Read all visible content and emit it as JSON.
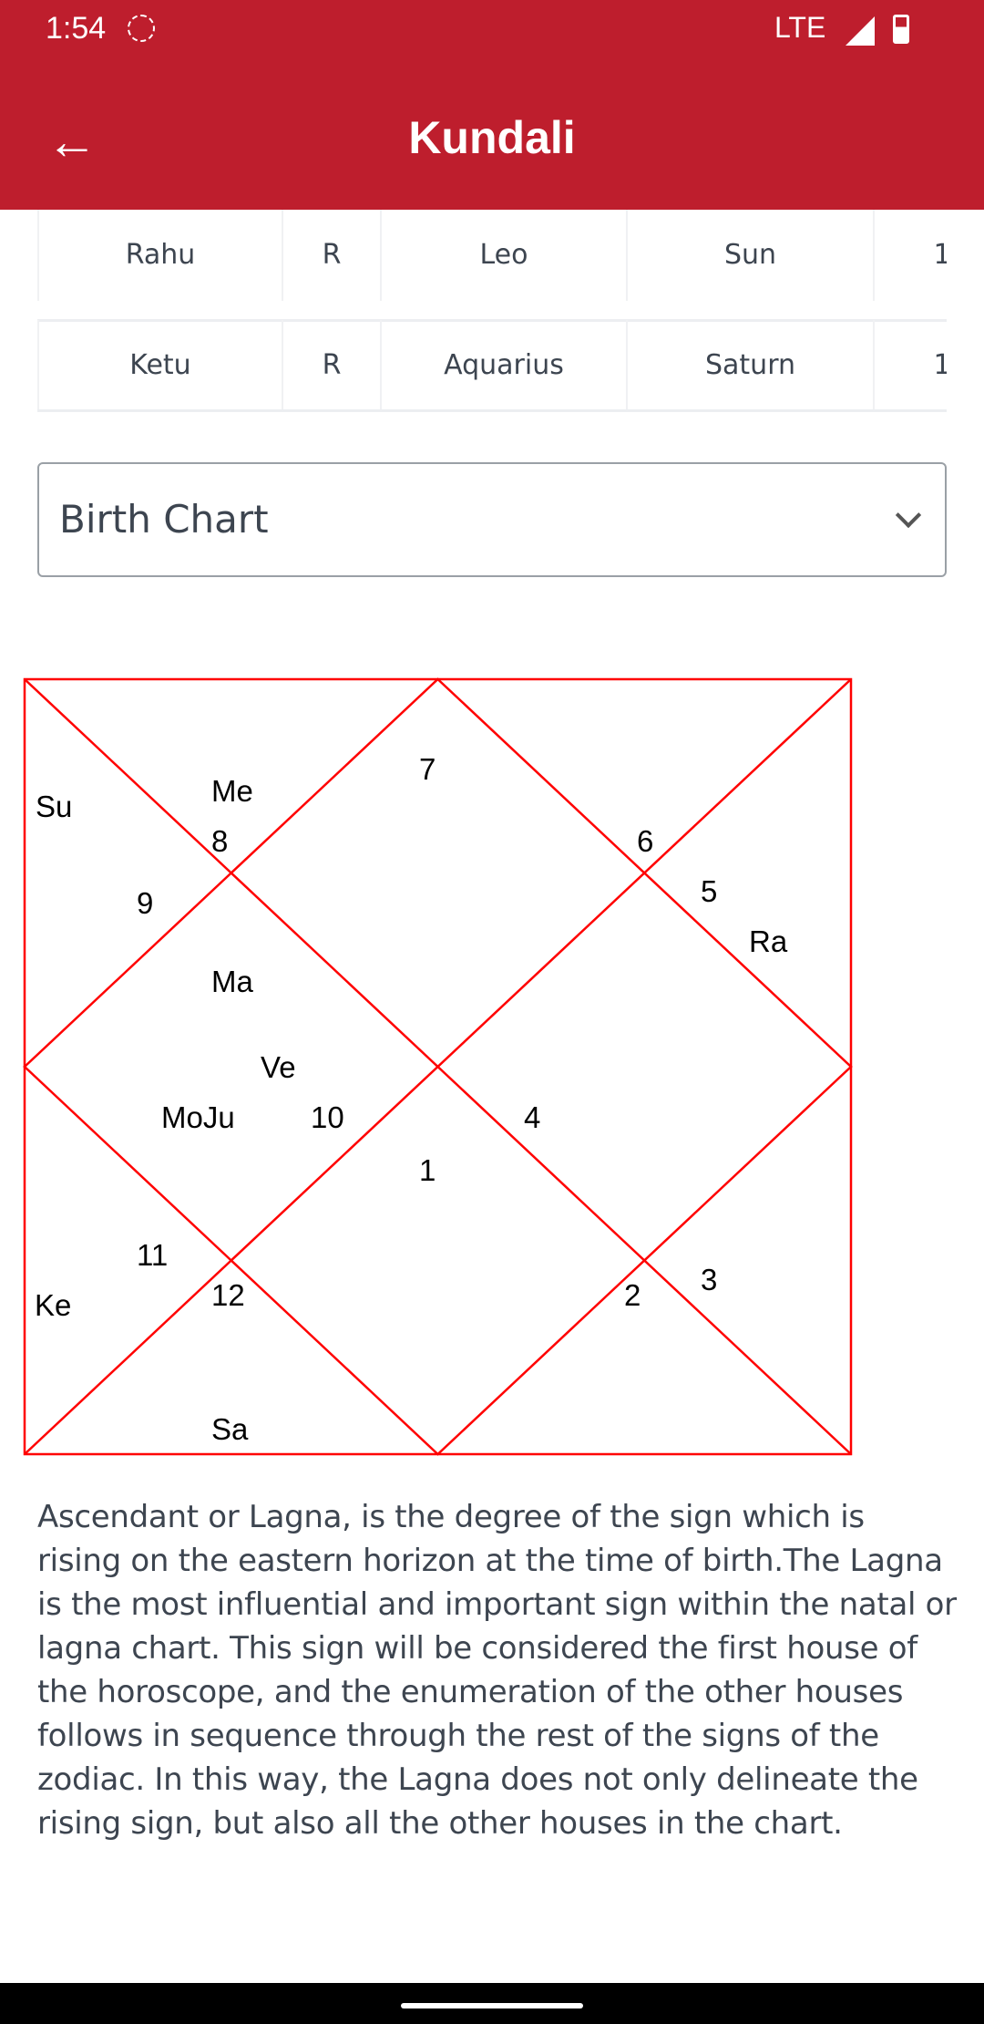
{
  "status_bar": {
    "time": "1:54",
    "network": "LTE",
    "icons": [
      "alarm-icon",
      "signal-icon",
      "battery-icon"
    ]
  },
  "app_bar": {
    "title": "Kundali",
    "back_icon": "arrow-left-icon"
  },
  "planet_table": {
    "rows": [
      [
        "Rahu",
        "R",
        "Leo",
        "Sun",
        "1"
      ],
      [
        "Ketu",
        "R",
        "Aquarius",
        "Saturn",
        "1"
      ]
    ]
  },
  "chart_selector": {
    "selected": "Birth Chart"
  },
  "birth_chart": {
    "line_color": "#ff0000",
    "houses": {
      "1": "1",
      "2": "2",
      "3": "3",
      "4": "4",
      "5": "5",
      "6": "6",
      "7": "7",
      "8": "8",
      "9": "9",
      "10": "10",
      "11": "11",
      "12": "12"
    },
    "planets": {
      "su": "Su",
      "me": "Me",
      "ra": "Ra",
      "ma": "Ma",
      "ve": "Ve",
      "moju": "MoJu",
      "ke": "Ke",
      "sa": "Sa"
    }
  },
  "description": "Ascendant or Lagna, is the degree of the sign which is rising on the eastern horizon at the time of birth.The Lagna is the most influential and important sign within the natal or lagna chart. This sign will be considered the first house of the horoscope, and the enumeration of the other houses follows in sequence through the rest of the signs of the zodiac. In this way, the Lagna does not only delineate the rising sign, but also all the other houses in the chart."
}
